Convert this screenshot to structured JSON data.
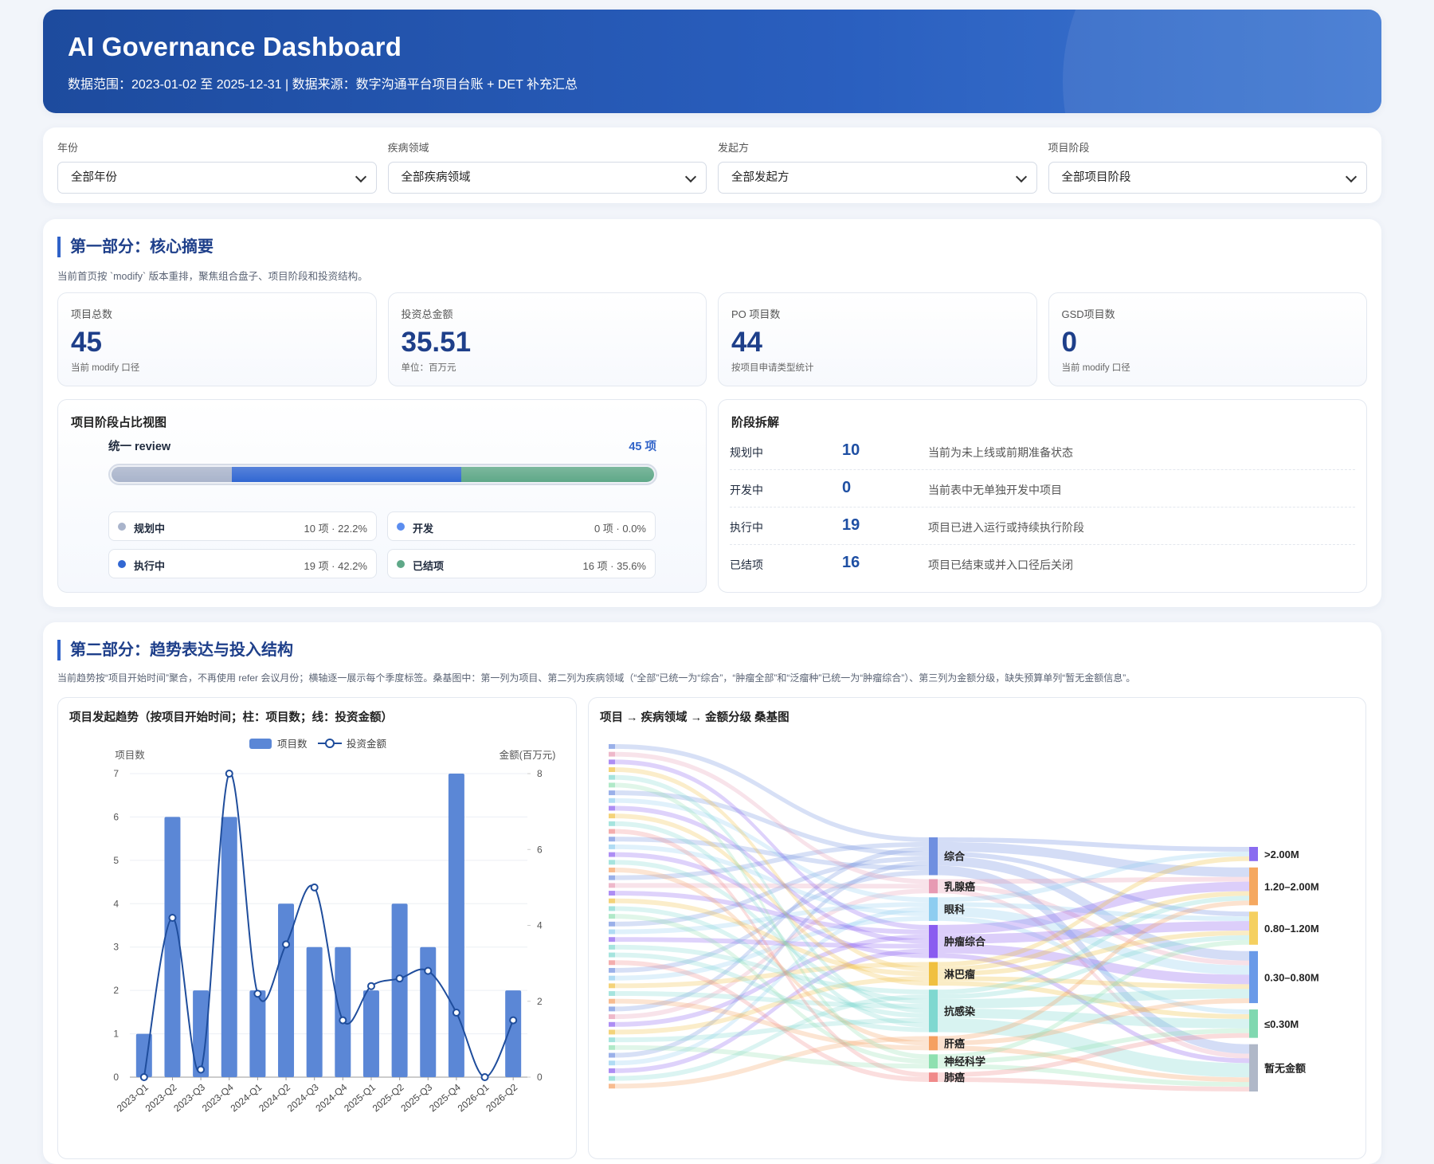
{
  "header": {
    "title": "AI Governance Dashboard",
    "subtitle": "数据范围：2023-01-02 至 2025-12-31 | 数据来源：数字沟通平台项目台账 + DET 补充汇总"
  },
  "filters": [
    {
      "label": "年份",
      "value": "全部年份"
    },
    {
      "label": "疾病领域",
      "value": "全部疾病领域"
    },
    {
      "label": "发起方",
      "value": "全部发起方"
    },
    {
      "label": "项目阶段",
      "value": "全部项目阶段"
    }
  ],
  "summary": {
    "title": "第一部分：核心摘要",
    "desc": "当前首页按 `modify` 版本重排，聚焦组合盘子、项目阶段和投资结构。",
    "kpis": [
      {
        "label": "项目总数",
        "value": 45,
        "note": "当前 modify 口径"
      },
      {
        "label": "投资总金额",
        "value": 35.51,
        "note": "单位：百万元"
      },
      {
        "label": "PO 项目数",
        "value": 44,
        "note": "按项目申请类型统计"
      },
      {
        "label": "GSD项目数",
        "value": 0,
        "note": "当前 modify 口径"
      }
    ],
    "stage_view": {
      "title": "项目阶段占比视图",
      "bar_label": "统一 review",
      "total_label": "45 项",
      "stages": [
        {
          "name": "规划中",
          "value": 10,
          "label": "10 项 · 22.2%",
          "color": "#a9b4cb"
        },
        {
          "name": "开发",
          "value": 0,
          "label": "0 项 · 0.0%",
          "color": "#5b8def"
        },
        {
          "name": "执行中",
          "value": 19,
          "label": "19 项 · 42.2%",
          "color": "#3267d2"
        },
        {
          "name": "已结项",
          "value": 16,
          "label": "16 项 · 35.6%",
          "color": "#5fa888"
        }
      ]
    },
    "stage_breakdown": {
      "title": "阶段拆解",
      "rows": [
        {
          "name": "规划中",
          "value": 10,
          "desc": "当前为未上线或前期准备状态"
        },
        {
          "name": "开发中",
          "value": 0,
          "desc": "当前表中无单独开发中项目"
        },
        {
          "name": "执行中",
          "value": 19,
          "desc": "项目已进入运行或持续执行阶段"
        },
        {
          "name": "已结项",
          "value": 16,
          "desc": "项目已结束或并入口径后关闭"
        }
      ]
    }
  },
  "section2": {
    "title": "第二部分：趋势表达与投入结构",
    "desc": "当前趋势按“项目开始时间”聚合，不再使用 refer 会议月份；横轴逐一展示每个季度标签。桑基图中：第一列为项目、第二列为疾病领域（“全部”已统一为“综合”，“肿瘤全部”和“泛瘤种”已统一为“肿瘤综合”）、第三列为金额分级，缺失预算单列“暂无金额信息”。"
  },
  "chart_data": [
    {
      "type": "bar_line",
      "title": "项目发起趋势（按项目开始时间；柱：项目数；线：投资金额）",
      "categories": [
        "2023-Q1",
        "2023-Q2",
        "2023-Q3",
        "2023-Q4",
        "2024-Q1",
        "2024-Q2",
        "2024-Q3",
        "2024-Q4",
        "2025-Q1",
        "2025-Q2",
        "2025-Q3",
        "2025-Q4",
        "2026-Q1",
        "2026-Q2"
      ],
      "series": [
        {
          "name": "项目数",
          "color": "#5b87d6",
          "values": [
            1,
            6,
            2,
            6,
            2,
            4,
            3,
            3,
            2,
            4,
            3,
            7,
            0,
            2
          ]
        },
        {
          "name": "投资金额",
          "color": "#1f4d9c",
          "axis": "y2",
          "values": [
            0,
            4.2,
            0.2,
            8.0,
            2.2,
            3.5,
            5.0,
            1.5,
            2.4,
            2.6,
            2.8,
            1.7,
            0,
            1.5
          ]
        }
      ],
      "ylabel": "项目数",
      "y2label": "金额(百万元)",
      "ylim": [
        0,
        7
      ],
      "yticks": [
        0,
        1,
        2,
        3,
        4,
        5,
        6,
        7
      ],
      "y2lim": [
        0,
        8
      ],
      "y2ticks": [
        0,
        2,
        4,
        6,
        8
      ],
      "grid": true
    },
    {
      "type": "sankey",
      "title": "项目 → 疾病领域 → 金额分级 桑基图",
      "domains": [
        {
          "name": "综合",
          "value": 8,
          "color": "#6f8fe0"
        },
        {
          "name": "乳腺癌",
          "value": 3,
          "color": "#e79ab3"
        },
        {
          "name": "眼科",
          "value": 5,
          "color": "#8ecdf0"
        },
        {
          "name": "肿瘤综合",
          "value": 7,
          "color": "#8a5cf0"
        },
        {
          "name": "淋巴瘤",
          "value": 5,
          "color": "#f0c040"
        },
        {
          "name": "抗感染",
          "value": 9,
          "color": "#7fd8d0"
        },
        {
          "name": "肝癌",
          "value": 3,
          "color": "#f5a060"
        },
        {
          "name": "神经科学",
          "value": 3,
          "color": "#8ee0b0"
        },
        {
          "name": "肺癌",
          "value": 2,
          "color": "#f08a8a"
        }
      ],
      "tiers": [
        {
          "name": ">2.00M",
          "value": 3,
          "color": "#8a6cf0"
        },
        {
          "name": "1.20–2.00M",
          "value": 8,
          "color": "#f5a860"
        },
        {
          "name": "0.80–1.20M",
          "value": 7,
          "color": "#f5d060"
        },
        {
          "name": "0.30–0.80M",
          "value": 11,
          "color": "#6a9ae8"
        },
        {
          "name": "≤0.30M",
          "value": 6,
          "color": "#80d8b0"
        },
        {
          "name": "暂无金额",
          "value": 10,
          "color": "#b0b8c8"
        }
      ],
      "links": [
        {
          "source": "综合",
          "target": ">2.00M",
          "value": 1
        },
        {
          "source": "综合",
          "target": "1.20–2.00M",
          "value": 2
        },
        {
          "source": "综合",
          "target": "0.80–1.20M",
          "value": 1
        },
        {
          "source": "综合",
          "target": "0.30–0.80M",
          "value": 2
        },
        {
          "source": "综合",
          "target": "暂无金额",
          "value": 2
        },
        {
          "source": "乳腺癌",
          "target": "1.20–2.00M",
          "value": 1
        },
        {
          "source": "乳腺癌",
          "target": "0.30–0.80M",
          "value": 1
        },
        {
          "source": "乳腺癌",
          "target": "暂无金额",
          "value": 1
        },
        {
          "source": "眼科",
          "target": ">2.00M",
          "value": 1
        },
        {
          "source": "眼科",
          "target": "0.80–1.20M",
          "value": 1
        },
        {
          "source": "眼科",
          "target": "0.30–0.80M",
          "value": 2
        },
        {
          "source": "眼科",
          "target": "≤0.30M",
          "value": 1
        },
        {
          "source": "肿瘤综合",
          "target": "1.20–2.00M",
          "value": 2
        },
        {
          "source": "肿瘤综合",
          "target": "0.80–1.20M",
          "value": 2
        },
        {
          "source": "肿瘤综合",
          "target": "0.30–0.80M",
          "value": 2
        },
        {
          "source": "肿瘤综合",
          "target": "暂无金额",
          "value": 1
        },
        {
          "source": "淋巴瘤",
          "target": ">2.00M",
          "value": 1
        },
        {
          "source": "淋巴瘤",
          "target": "1.20–2.00M",
          "value": 1
        },
        {
          "source": "淋巴瘤",
          "target": "0.80–1.20M",
          "value": 1
        },
        {
          "source": "淋巴瘤",
          "target": "0.30–0.80M",
          "value": 1
        },
        {
          "source": "淋巴瘤",
          "target": "≤0.30M",
          "value": 1
        },
        {
          "source": "抗感染",
          "target": "1.20–2.00M",
          "value": 1
        },
        {
          "source": "抗感染",
          "target": "0.80–1.20M",
          "value": 1
        },
        {
          "source": "抗感染",
          "target": "0.30–0.80M",
          "value": 2
        },
        {
          "source": "抗感染",
          "target": "≤0.30M",
          "value": 2
        },
        {
          "source": "抗感染",
          "target": "暂无金额",
          "value": 3
        },
        {
          "source": "肝癌",
          "target": "1.20–2.00M",
          "value": 1
        },
        {
          "source": "肝癌",
          "target": "0.30–0.80M",
          "value": 1
        },
        {
          "source": "肝癌",
          "target": "暂无金额",
          "value": 1
        },
        {
          "source": "神经科学",
          "target": "0.80–1.20M",
          "value": 1
        },
        {
          "source": "神经科学",
          "target": "≤0.30M",
          "value": 1
        },
        {
          "source": "神经科学",
          "target": "暂无金额",
          "value": 1
        },
        {
          "source": "肺癌",
          "target": "≤0.30M",
          "value": 1
        },
        {
          "source": "肺癌",
          "target": "暂无金额",
          "value": 1
        }
      ]
    }
  ]
}
